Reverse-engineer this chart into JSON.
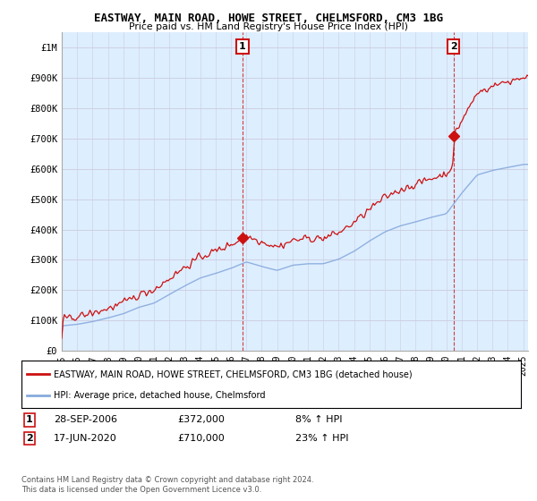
{
  "title": "EASTWAY, MAIN ROAD, HOWE STREET, CHELMSFORD, CM3 1BG",
  "subtitle": "Price paid vs. HM Land Registry's House Price Index (HPI)",
  "legend_line1": "EASTWAY, MAIN ROAD, HOWE STREET, CHELMSFORD, CM3 1BG (detached house)",
  "legend_line2": "HPI: Average price, detached house, Chelmsford",
  "annotation1_label": "1",
  "annotation1_date": "28-SEP-2006",
  "annotation1_price": "£372,000",
  "annotation1_hpi": "8% ↑ HPI",
  "annotation1_year": 2006.75,
  "annotation1_value": 372000,
  "annotation2_label": "2",
  "annotation2_date": "17-JUN-2020",
  "annotation2_price": "£710,000",
  "annotation2_hpi": "23% ↑ HPI",
  "annotation2_year": 2020.46,
  "annotation2_value": 710000,
  "footer": "Contains HM Land Registry data © Crown copyright and database right 2024.\nThis data is licensed under the Open Government Licence v3.0.",
  "ylim": [
    0,
    1050000
  ],
  "yticks": [
    0,
    100000,
    200000,
    300000,
    400000,
    500000,
    600000,
    700000,
    800000,
    900000,
    1000000
  ],
  "ytick_labels": [
    "£0",
    "£100K",
    "£200K",
    "£300K",
    "£400K",
    "£500K",
    "£600K",
    "£700K",
    "£800K",
    "£900K",
    "£1M"
  ],
  "xlim_left": 1995.0,
  "xlim_right": 2025.3,
  "xticks": [
    1995,
    1996,
    1997,
    1998,
    1999,
    2000,
    2001,
    2002,
    2003,
    2004,
    2005,
    2006,
    2007,
    2008,
    2009,
    2010,
    2011,
    2012,
    2013,
    2014,
    2015,
    2016,
    2017,
    2018,
    2019,
    2020,
    2021,
    2022,
    2023,
    2024,
    2025
  ],
  "red_color": "#cc1111",
  "blue_color": "#88aadd",
  "vline_color": "#cc1111",
  "grid_color": "#ccccdd",
  "bg_color": "#ffffff",
  "plot_bg_color": "#ddeeff",
  "sale1_x": 2006.75,
  "sale1_y": 372000,
  "sale2_x": 2020.46,
  "sale2_y": 710000
}
